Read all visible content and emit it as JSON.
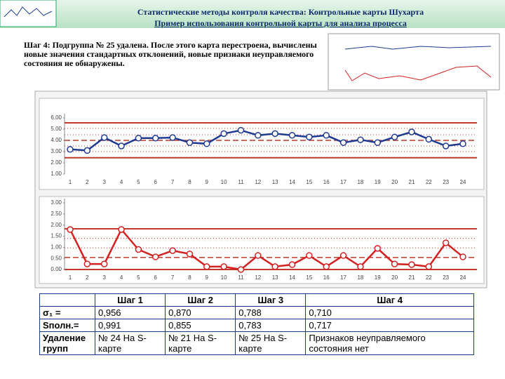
{
  "header": {
    "title": "Статистические методы контроля качества: Контрольные карты Шухарта",
    "subtitle": "Пример использования контрольной карты для анализа процесса"
  },
  "step_text": "Шаг 4: Подгруппа № 25 удалена. После этого карта перестроена, вычислены новые значения стандартных отклонений, новые признаки неуправляемого состояния не обнаружены.",
  "chart_data": [
    {
      "type": "line",
      "color": "#1f3a93",
      "limit_color": "#c0392b",
      "categories": [
        "1",
        "2",
        "3",
        "4",
        "5",
        "6",
        "7",
        "8",
        "9",
        "10",
        "11",
        "12",
        "13",
        "14",
        "15",
        "16",
        "17",
        "18",
        "19",
        "20",
        "21",
        "22",
        "23",
        "24"
      ],
      "values": [
        3.2,
        3.1,
        4.25,
        3.5,
        4.2,
        4.2,
        4.25,
        3.8,
        3.7,
        4.6,
        4.9,
        4.45,
        4.6,
        4.45,
        4.3,
        4.45,
        3.8,
        4.05,
        3.8,
        4.3,
        4.75,
        4.1,
        3.5,
        3.7
      ],
      "ylim": [
        1,
        6
      ],
      "yticks": [
        {
          "value": 1,
          "label": "1.00"
        },
        {
          "value": 2,
          "label": "2.00"
        },
        {
          "value": 3,
          "label": "3.00"
        },
        {
          "value": 4,
          "label": "4.00"
        },
        {
          "value": 5,
          "label": "5.00"
        },
        {
          "value": 6,
          "label": "6.00"
        }
      ],
      "ucl": 5.56,
      "cl": 4.0,
      "lcl": 2.45,
      "sigma_lines": [
        5.06,
        4.5,
        3.5,
        3.0
      ]
    },
    {
      "type": "line",
      "color": "#d42020",
      "limit_color": "#c0392b",
      "categories": [
        "1",
        "2",
        "3",
        "4",
        "5",
        "6",
        "7",
        "8",
        "9",
        "10",
        "11",
        "12",
        "13",
        "14",
        "15",
        "16",
        "17",
        "18",
        "19",
        "20",
        "21",
        "22",
        "23",
        "24"
      ],
      "values": [
        1.8,
        0.25,
        0.25,
        1.8,
        0.9,
        0.57,
        0.85,
        0.7,
        0.13,
        0.13,
        0.0,
        0.63,
        0.13,
        0.22,
        0.63,
        0.13,
        0.63,
        0.13,
        0.95,
        0.25,
        0.22,
        0.13,
        1.2,
        0.57
      ],
      "ylim": [
        0,
        3
      ],
      "yticks": [
        {
          "value": 0,
          "label": "0.00"
        },
        {
          "value": 0.5,
          "label": "0.50"
        },
        {
          "value": 1,
          "label": "1.00"
        },
        {
          "value": 1.5,
          "label": "1.50"
        },
        {
          "value": 2,
          "label": "2.00"
        },
        {
          "value": 2.5,
          "label": "2.50"
        },
        {
          "value": 3,
          "label": "3.00"
        }
      ],
      "ucl": 1.83,
      "cl": 0.54,
      "lcl": 0.0,
      "sigma_lines": [
        1.4,
        0.97
      ]
    }
  ],
  "table": {
    "header": [
      "Шаг 1",
      "Шаг 2",
      "Шаг 3",
      "Шаг 4"
    ],
    "rows": [
      [
        "σ₁ =",
        "0,956",
        "0,870",
        "0,788",
        "0,710"
      ],
      [
        "Sполн.=",
        "0,991",
        "0,855",
        "0,783",
        "0,717"
      ],
      [
        "Удаление групп",
        "№ 24 На S-карте",
        "№ 21 На S-карте",
        "№ 25 На S-карте",
        "Признаков неуправляемого состояния нет"
      ]
    ]
  }
}
